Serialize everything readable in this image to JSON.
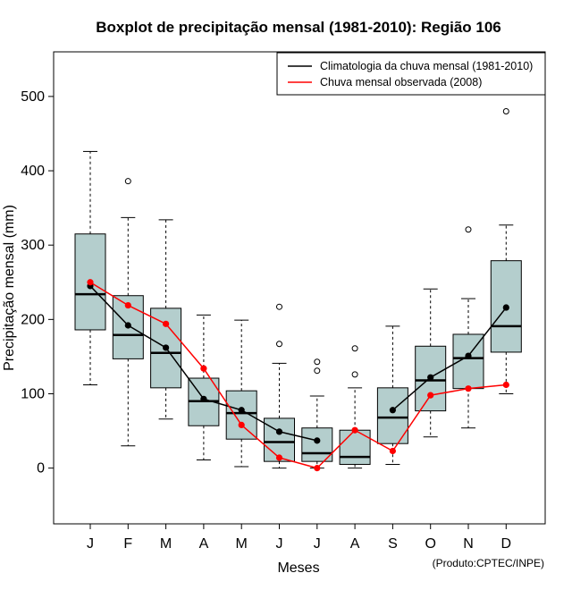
{
  "chart_data": {
    "type": "boxplot",
    "title": "Boxplot de precipitação mensal (1981-2010): Região 106",
    "xlabel": "Meses",
    "ylabel": "Precipitação mensal (mm)",
    "ylim": [
      -75,
      560
    ],
    "yticks": [
      0,
      100,
      200,
      300,
      400,
      500
    ],
    "categories": [
      "J",
      "F",
      "M",
      "A",
      "M",
      "J",
      "J",
      "A",
      "S",
      "O",
      "N",
      "D"
    ],
    "boxes": [
      {
        "whisker_low": 112,
        "q1": 186,
        "median": 234,
        "q3": 315,
        "whisker_high": 426,
        "outliers": []
      },
      {
        "whisker_low": 30,
        "q1": 147,
        "median": 179,
        "q3": 232,
        "whisker_high": 337,
        "outliers": [
          386
        ]
      },
      {
        "whisker_low": 66,
        "q1": 108,
        "median": 155,
        "q3": 215,
        "whisker_high": 334,
        "outliers": []
      },
      {
        "whisker_low": 11,
        "q1": 57,
        "median": 90,
        "q3": 121,
        "whisker_high": 206,
        "outliers": []
      },
      {
        "whisker_low": 2,
        "q1": 39,
        "median": 74,
        "q3": 104,
        "whisker_high": 199,
        "outliers": []
      },
      {
        "whisker_low": 0,
        "q1": 9,
        "median": 35,
        "q3": 67,
        "whisker_high": 141,
        "outliers": [
          167,
          217
        ]
      },
      {
        "whisker_low": 0,
        "q1": 9,
        "median": 20,
        "q3": 54,
        "whisker_high": 97,
        "outliers": [
          131,
          143
        ]
      },
      {
        "whisker_low": 0,
        "q1": 5,
        "median": 15,
        "q3": 51,
        "whisker_high": 108,
        "outliers": [
          126,
          161
        ]
      },
      {
        "whisker_low": 5,
        "q1": 33,
        "median": 68,
        "q3": 108,
        "whisker_high": 191,
        "outliers": []
      },
      {
        "whisker_low": 42,
        "q1": 77,
        "median": 118,
        "q3": 164,
        "whisker_high": 241,
        "outliers": []
      },
      {
        "whisker_low": 54,
        "q1": 107,
        "median": 148,
        "q3": 180,
        "whisker_high": 228,
        "outliers": [
          321
        ]
      },
      {
        "whisker_low": 100,
        "q1": 156,
        "median": 191,
        "q3": 279,
        "whisker_high": 327,
        "outliers": [
          480
        ]
      }
    ],
    "series": [
      {
        "name": "Climatologia da chuva mensal (1981-2010)",
        "color": "#000000",
        "values": [
          245,
          192,
          162,
          93,
          78,
          49,
          37,
          null,
          78,
          122,
          151,
          216
        ]
      },
      {
        "name": "Chuva mensal observada (2008)",
        "color": "#ff0000",
        "values": [
          250,
          219,
          194,
          134,
          58,
          14,
          0,
          51,
          23,
          98,
          107,
          112
        ]
      }
    ],
    "legend_position": "top-right",
    "box_fill": "#b4cecd",
    "credit": "(Produto:CPTEC/INPE)"
  }
}
